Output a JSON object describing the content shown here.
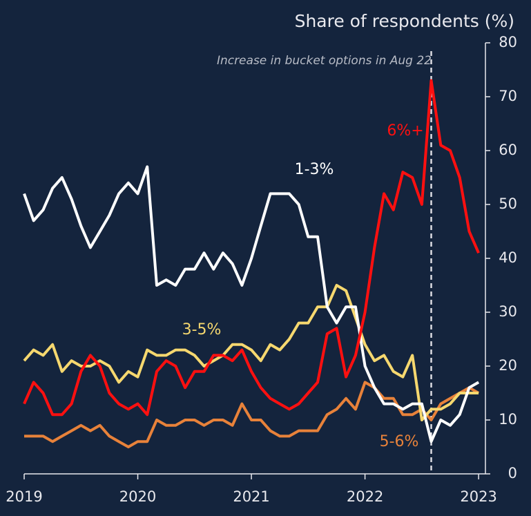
{
  "chart_data": {
    "type": "line",
    "y_axis_title": "Share of respondents (%)",
    "annotation": "Increase in bucket options in Aug 22",
    "vline_x": 2022.583,
    "x": [
      2019,
      2019.083,
      2019.167,
      2019.25,
      2019.333,
      2019.417,
      2019.5,
      2019.583,
      2019.667,
      2019.75,
      2019.833,
      2019.917,
      2020,
      2020.083,
      2020.167,
      2020.25,
      2020.333,
      2020.417,
      2020.5,
      2020.583,
      2020.667,
      2020.75,
      2020.833,
      2020.917,
      2021,
      2021.083,
      2021.167,
      2021.25,
      2021.333,
      2021.417,
      2021.5,
      2021.583,
      2021.667,
      2021.75,
      2021.833,
      2021.917,
      2022,
      2022.083,
      2022.167,
      2022.25,
      2022.333,
      2022.417,
      2022.5,
      2022.583,
      2022.667,
      2022.75,
      2022.833,
      2022.917,
      2023
    ],
    "series": [
      {
        "name": "1-3%",
        "color": "#ffffff",
        "values": [
          52,
          47,
          49,
          53,
          55,
          51,
          46,
          42,
          45,
          48,
          52,
          54,
          52,
          57,
          35,
          36,
          35,
          38,
          38,
          41,
          38,
          41,
          39,
          35,
          40,
          46,
          52,
          52,
          52,
          50,
          44,
          44,
          31,
          28,
          31,
          31,
          20,
          16,
          13,
          13,
          12,
          13,
          13,
          6,
          10,
          9,
          11,
          16,
          17
        ]
      },
      {
        "name": "3-5%",
        "color": "#f6d86f",
        "values": [
          21,
          23,
          22,
          24,
          19,
          21,
          20,
          20,
          21,
          20,
          17,
          19,
          18,
          23,
          22,
          22,
          23,
          23,
          22,
          20,
          21,
          22,
          24,
          24,
          23,
          21,
          24,
          23,
          25,
          28,
          28,
          31,
          31,
          35,
          34,
          29,
          24,
          21,
          22,
          19,
          18,
          22,
          10,
          12,
          12,
          13,
          15,
          15,
          15
        ]
      },
      {
        "name": "6%+",
        "color": "#ff1010",
        "values": [
          13,
          17,
          15,
          11,
          11,
          13,
          19,
          22,
          20,
          15,
          13,
          12,
          13,
          11,
          19,
          21,
          20,
          16,
          19,
          19,
          22,
          22,
          21,
          23,
          19,
          16,
          14,
          13,
          12,
          13,
          15,
          17,
          26,
          27,
          18,
          22,
          30,
          42,
          52,
          49,
          56,
          55,
          50,
          73,
          61,
          60,
          55,
          45,
          41
        ]
      },
      {
        "name": "5-6%",
        "color": "#e8823a",
        "values": [
          7,
          7,
          7,
          6,
          7,
          8,
          9,
          8,
          9,
          7,
          6,
          5,
          6,
          6,
          10,
          9,
          9,
          10,
          10,
          9,
          10,
          10,
          9,
          13,
          10,
          10,
          8,
          7,
          7,
          8,
          8,
          8,
          11,
          12,
          14,
          12,
          17,
          16,
          14,
          14,
          11,
          11,
          12,
          10,
          13,
          14,
          15,
          16,
          15
        ]
      }
    ],
    "xlim": [
      2019,
      2023.06
    ],
    "xticks": [
      2019,
      2020,
      2021,
      2022,
      2023
    ],
    "ylim": [
      0,
      80
    ],
    "yticks": [
      0,
      10,
      20,
      30,
      40,
      50,
      60,
      70,
      80
    ]
  }
}
